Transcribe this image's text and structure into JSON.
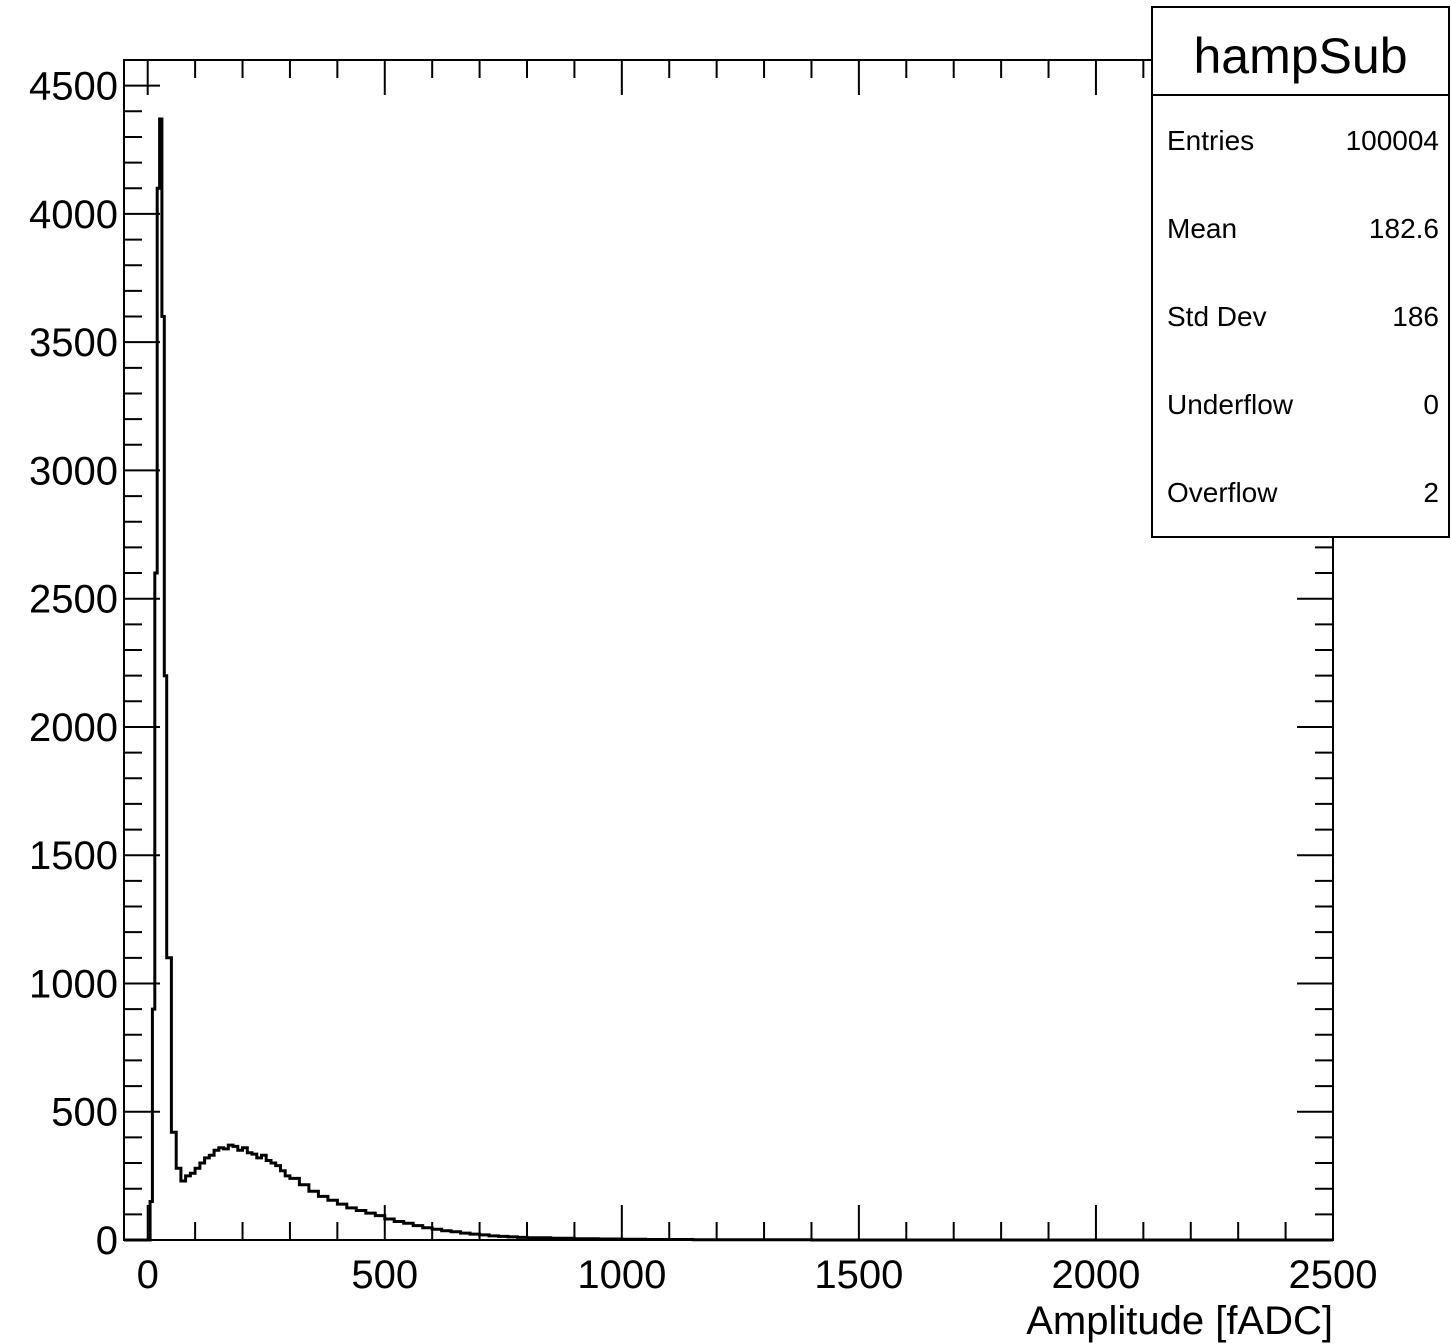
{
  "chart_data": {
    "type": "line",
    "style": "step-histogram",
    "title": "",
    "xlabel": "Amplitude [fADC]",
    "ylabel": "",
    "xlim": [
      -50,
      2500
    ],
    "ylim": [
      0,
      4600
    ],
    "x_ticks": [
      {
        "value": 0,
        "label": "0"
      },
      {
        "value": 500,
        "label": "500"
      },
      {
        "value": 1000,
        "label": "1000"
      },
      {
        "value": 1500,
        "label": "1500"
      },
      {
        "value": 2000,
        "label": "2000"
      },
      {
        "value": 2500,
        "label": "2500"
      }
    ],
    "y_ticks": [
      {
        "value": 0,
        "label": "0"
      },
      {
        "value": 500,
        "label": "500"
      },
      {
        "value": 1000,
        "label": "1000"
      },
      {
        "value": 1500,
        "label": "1500"
      },
      {
        "value": 2000,
        "label": "2000"
      },
      {
        "value": 2500,
        "label": "2500"
      },
      {
        "value": 3000,
        "label": "3000"
      },
      {
        "value": 3500,
        "label": "3500"
      },
      {
        "value": 4000,
        "label": "4000"
      },
      {
        "value": 4500,
        "label": "4500"
      }
    ],
    "grid": false,
    "line_color": "#000000",
    "series": [
      {
        "x": [
          -50,
          0,
          5,
          10,
          15,
          20,
          25,
          30,
          35,
          40,
          50,
          60,
          70,
          80,
          90,
          100,
          110,
          120,
          130,
          140,
          150,
          160,
          170,
          180,
          190,
          200,
          210,
          220,
          230,
          240,
          250,
          260,
          270,
          280,
          290,
          300,
          320,
          340,
          360,
          380,
          400,
          420,
          440,
          460,
          480,
          500,
          520,
          540,
          560,
          580,
          600,
          620,
          640,
          660,
          680,
          700,
          720,
          740,
          760,
          780,
          800,
          850,
          900,
          950,
          1000,
          1050,
          1100,
          1150,
          1200,
          1300,
          1400,
          1500,
          1600,
          1700,
          1800,
          1900,
          2000,
          2100,
          2200,
          2300,
          2400,
          2500
        ],
        "values": [
          0,
          0,
          150,
          900,
          2600,
          4100,
          4370,
          3600,
          2200,
          1100,
          420,
          280,
          230,
          250,
          260,
          280,
          300,
          320,
          330,
          350,
          360,
          355,
          370,
          365,
          350,
          360,
          340,
          335,
          320,
          330,
          310,
          300,
          290,
          270,
          250,
          240,
          215,
          190,
          170,
          155,
          140,
          125,
          115,
          105,
          95,
          82,
          72,
          65,
          56,
          48,
          42,
          36,
          32,
          27,
          23,
          20,
          16,
          14,
          12,
          10,
          9,
          7,
          5,
          4,
          3,
          2,
          2,
          1,
          1,
          1,
          0,
          0,
          0,
          0,
          0,
          0,
          0,
          0,
          0,
          0,
          0,
          0
        ]
      }
    ]
  },
  "stats_box": {
    "title": "hampSub",
    "rows": [
      {
        "label": "Entries",
        "value": "100004"
      },
      {
        "label": "Mean",
        "value": "182.6"
      },
      {
        "label": "Std Dev",
        "value": "186"
      },
      {
        "label": "Underflow",
        "value": "0"
      },
      {
        "label": "Overflow",
        "value": "2"
      }
    ]
  }
}
